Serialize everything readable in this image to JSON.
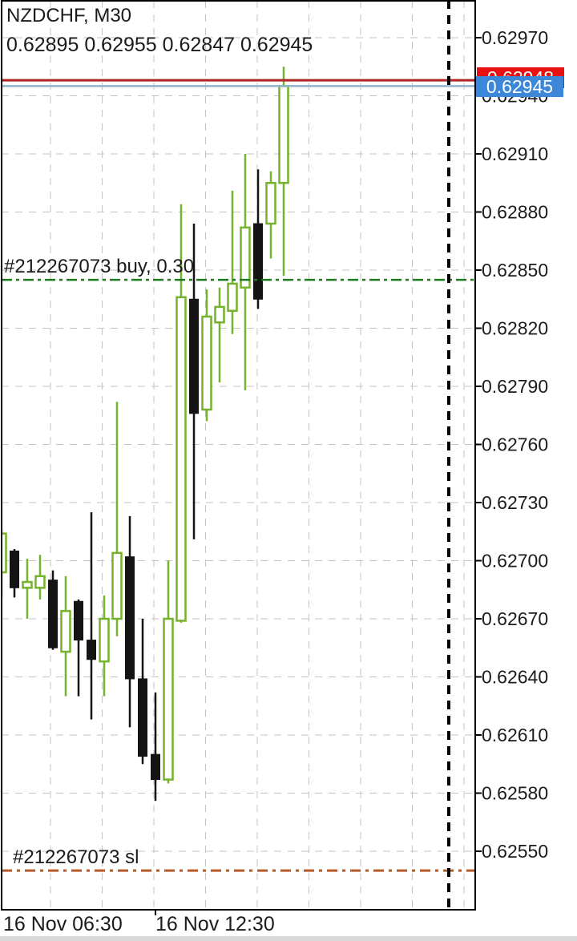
{
  "header": {
    "symbol_title": "NZDCHF, M30",
    "ohlc_line": "0.62895 0.62955 0.62847 0.62945"
  },
  "colors": {
    "bull": "#74b32a",
    "bear": "#141414",
    "wick_bull": "#74b32a",
    "wick_bear": "#141414",
    "grid": "#c3c3c3",
    "frame": "#000000",
    "ask_line": "#b02323",
    "bid_line": "#8fb4c9",
    "buy_line": "#1e7a1e",
    "sl_line": "#b45b2b",
    "ask_badge_bg": "#e81010",
    "bid_badge_bg": "#3c87d7",
    "text": "#1b1b1b",
    "separator": "#000000"
  },
  "chart_data": {
    "type": "candlestick",
    "symbol": "NZDCHF",
    "timeframe": "M30",
    "title": "NZDCHF, M30",
    "current_bar": {
      "open": 0.62895,
      "high": 0.62955,
      "low": 0.62847,
      "close": 0.62945
    },
    "y_axis": {
      "max": 0.6297,
      "min": 0.6255,
      "step": 0.0003,
      "ticks": [
        "0.62970",
        "0.62940",
        "0.62910",
        "0.62880",
        "0.62850",
        "0.62820",
        "0.62790",
        "0.62760",
        "0.62730",
        "0.62700",
        "0.62670",
        "0.62640",
        "0.62610",
        "0.62580",
        "0.62550"
      ]
    },
    "x_axis": {
      "labels": [
        {
          "text": "16 Nov 06:30",
          "candle_index": 0
        },
        {
          "text": "16 Nov 12:30",
          "candle_index": 12
        }
      ]
    },
    "candles": [
      {
        "time": "06:30",
        "open": 0.62694,
        "high": 0.62716,
        "low": 0.62681,
        "close": 0.62714
      },
      {
        "time": "07:00",
        "open": 0.62705,
        "high": 0.62706,
        "low": 0.62681,
        "close": 0.62686
      },
      {
        "time": "07:30",
        "open": 0.62686,
        "high": 0.62701,
        "low": 0.6267,
        "close": 0.62689
      },
      {
        "time": "08:00",
        "open": 0.62686,
        "high": 0.62703,
        "low": 0.6268,
        "close": 0.62692
      },
      {
        "time": "08:30",
        "open": 0.6269,
        "high": 0.62695,
        "low": 0.62654,
        "close": 0.62655
      },
      {
        "time": "09:00",
        "open": 0.62653,
        "high": 0.62692,
        "low": 0.6263,
        "close": 0.62674
      },
      {
        "time": "09:30",
        "open": 0.62679,
        "high": 0.6268,
        "low": 0.6263,
        "close": 0.62659
      },
      {
        "time": "10:00",
        "open": 0.62659,
        "high": 0.62725,
        "low": 0.62618,
        "close": 0.62649
      },
      {
        "time": "10:30",
        "open": 0.62648,
        "high": 0.62682,
        "low": 0.6263,
        "close": 0.6267
      },
      {
        "time": "11:00",
        "open": 0.6267,
        "high": 0.62782,
        "low": 0.62661,
        "close": 0.62704
      },
      {
        "time": "11:30",
        "open": 0.62702,
        "high": 0.62723,
        "low": 0.62614,
        "close": 0.62639
      },
      {
        "time": "12:00",
        "open": 0.62639,
        "high": 0.6267,
        "low": 0.62595,
        "close": 0.62599
      },
      {
        "time": "12:30",
        "open": 0.626,
        "high": 0.62632,
        "low": 0.62576,
        "close": 0.62587
      },
      {
        "time": "13:00",
        "open": 0.62587,
        "high": 0.627,
        "low": 0.62585,
        "close": 0.6267
      },
      {
        "time": "13:30",
        "open": 0.62669,
        "high": 0.62884,
        "low": 0.62668,
        "close": 0.62836
      },
      {
        "time": "14:00",
        "open": 0.62835,
        "high": 0.62874,
        "low": 0.62711,
        "close": 0.62776
      },
      {
        "time": "14:30",
        "open": 0.62778,
        "high": 0.6284,
        "low": 0.62772,
        "close": 0.62826
      },
      {
        "time": "15:00",
        "open": 0.62823,
        "high": 0.62841,
        "low": 0.62792,
        "close": 0.62831
      },
      {
        "time": "15:30",
        "open": 0.62829,
        "high": 0.62891,
        "low": 0.62817,
        "close": 0.62843
      },
      {
        "time": "16:00",
        "open": 0.62841,
        "high": 0.6291,
        "low": 0.62788,
        "close": 0.62872
      },
      {
        "time": "16:30",
        "open": 0.62874,
        "high": 0.62902,
        "low": 0.6283,
        "close": 0.62835
      },
      {
        "time": "17:00",
        "open": 0.62874,
        "high": 0.62901,
        "low": 0.62856,
        "close": 0.62895
      },
      {
        "time": "17:30",
        "open": 0.62895,
        "high": 0.62955,
        "low": 0.62847,
        "close": 0.62945
      }
    ],
    "price_lines": {
      "ask": {
        "price": 0.62948,
        "label": "0.62948"
      },
      "bid": {
        "price": 0.62945,
        "label": "0.62945"
      },
      "buy_order": {
        "price": 0.62845,
        "label": "#212267073 buy, 0.30"
      },
      "stop_loss": {
        "price": 0.6254,
        "label": "#212267073 sl"
      }
    },
    "day_separator": {
      "bar_index": 35
    },
    "legend_position": "none",
    "grid": true
  }
}
